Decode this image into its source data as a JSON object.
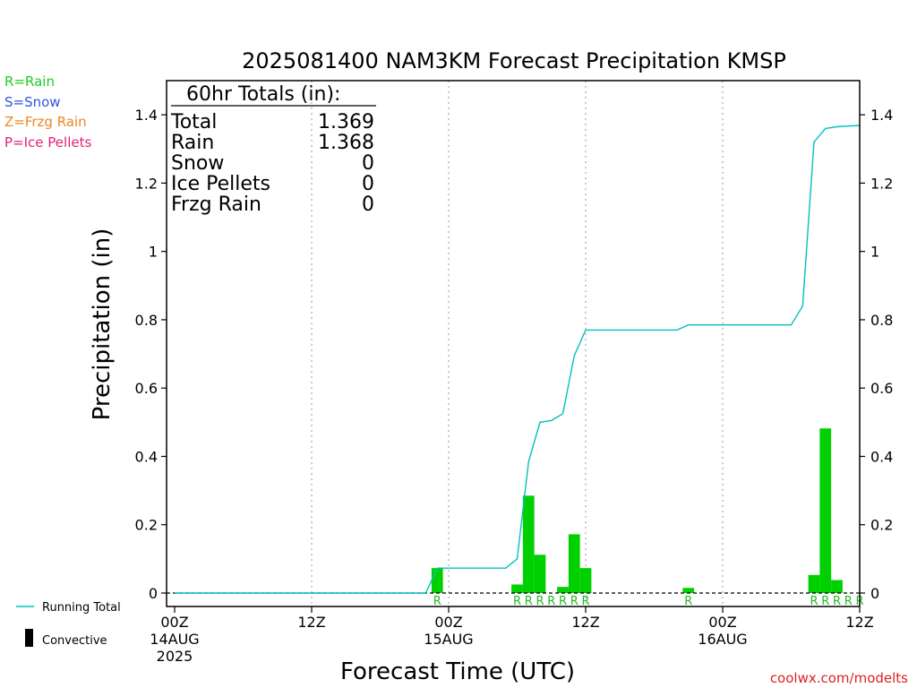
{
  "chart_data": {
    "type": "bar",
    "title": "2025081400 NAM3KM Forecast Precipitation KMSP",
    "xlabel": "Forecast Time (UTC)",
    "ylabel": "Precipitation (in)",
    "ylim": [
      0,
      1.5
    ],
    "yticks": [
      "0",
      "0.2",
      "0.4",
      "0.6",
      "0.8",
      "1",
      "1.2",
      "1.4"
    ],
    "x_range_hours": [
      0,
      60
    ],
    "xticks": [
      {
        "hour": 0,
        "label": "00Z",
        "sub": "14AUG",
        "sub2": "2025"
      },
      {
        "hour": 12,
        "label": "12Z",
        "sub": "",
        "sub2": ""
      },
      {
        "hour": 24,
        "label": "00Z",
        "sub": "15AUG",
        "sub2": ""
      },
      {
        "hour": 36,
        "label": "12Z",
        "sub": "",
        "sub2": ""
      },
      {
        "hour": 48,
        "label": "00Z",
        "sub": "16AUG",
        "sub2": ""
      },
      {
        "hour": 60,
        "label": "12Z",
        "sub": "",
        "sub2": ""
      }
    ],
    "series": [
      {
        "name": "Precipitation",
        "hours": [
          23,
          30,
          31,
          32,
          34,
          35,
          36,
          45,
          56,
          57,
          58
        ],
        "values": [
          0.073,
          0.025,
          0.285,
          0.112,
          0.018,
          0.172,
          0.073,
          0.015,
          0.053,
          0.482,
          0.038
        ],
        "color": "#00d000"
      },
      {
        "name": "Running Total",
        "hours": [
          0,
          1,
          2,
          3,
          4,
          5,
          6,
          7,
          8,
          9,
          10,
          11,
          12,
          13,
          14,
          15,
          16,
          17,
          18,
          19,
          20,
          21,
          22,
          23,
          24,
          25,
          26,
          27,
          28,
          29,
          30,
          31,
          32,
          33,
          34,
          35,
          36,
          37,
          38,
          39,
          40,
          41,
          42,
          43,
          44,
          45,
          46,
          47,
          48,
          49,
          50,
          51,
          52,
          53,
          54,
          55,
          56,
          57,
          58,
          59,
          60
        ],
        "values": [
          0,
          0,
          0,
          0,
          0,
          0,
          0,
          0,
          0,
          0,
          0,
          0,
          0,
          0,
          0,
          0,
          0,
          0,
          0,
          0,
          0,
          0,
          0,
          0.073,
          0.073,
          0.073,
          0.073,
          0.073,
          0.073,
          0.073,
          0.1,
          0.385,
          0.5,
          0.505,
          0.525,
          0.695,
          0.77,
          0.77,
          0.77,
          0.77,
          0.77,
          0.77,
          0.77,
          0.77,
          0.77,
          0.785,
          0.785,
          0.785,
          0.785,
          0.785,
          0.785,
          0.785,
          0.785,
          0.785,
          0.785,
          0.84,
          1.32,
          1.36,
          1.365,
          1.367,
          1.369
        ],
        "color": "#00c0c0"
      }
    ],
    "precip_type_labels": [
      {
        "hour": 23,
        "text": "R"
      },
      {
        "hour": 30,
        "text": "R"
      },
      {
        "hour": 31,
        "text": "R"
      },
      {
        "hour": 32,
        "text": "R"
      },
      {
        "hour": 33,
        "text": "R"
      },
      {
        "hour": 34,
        "text": "R"
      },
      {
        "hour": 35,
        "text": "R"
      },
      {
        "hour": 36,
        "text": "R"
      },
      {
        "hour": 45,
        "text": "R"
      },
      {
        "hour": 56,
        "text": "R"
      },
      {
        "hour": 57,
        "text": "R"
      },
      {
        "hour": 58,
        "text": "R"
      },
      {
        "hour": 59,
        "text": "R"
      },
      {
        "hour": 60,
        "text": "R"
      }
    ],
    "grid": "vertical dotted at 12-hour marks",
    "legend_position": "bottom-left"
  },
  "totals_box": {
    "header": "60hr Totals (in):",
    "rows": [
      {
        "label": "Total",
        "value": "1.369"
      },
      {
        "label": "Rain",
        "value": "1.368"
      },
      {
        "label": "Snow",
        "value": "0"
      },
      {
        "label": "Ice Pellets",
        "value": "0"
      },
      {
        "label": "Frzg Rain",
        "value": "0"
      }
    ]
  },
  "type_legend": [
    {
      "text": "R=Rain",
      "color": "#22cc22"
    },
    {
      "text": "S=Snow",
      "color": "#3355dd"
    },
    {
      "text": "Z=Frzg Rain",
      "color": "#ee8822"
    },
    {
      "text": "P=Ice Pellets",
      "color": "#e0227a"
    }
  ],
  "series_legend": {
    "running_total": "Running Total",
    "convective": "Convective"
  },
  "watermark": "coolwx.com/modelts",
  "colors": {
    "running_total": "#00c0c0",
    "bars": "#00d000",
    "rain_label": "#22bb22",
    "watermark": "#dd2222"
  }
}
